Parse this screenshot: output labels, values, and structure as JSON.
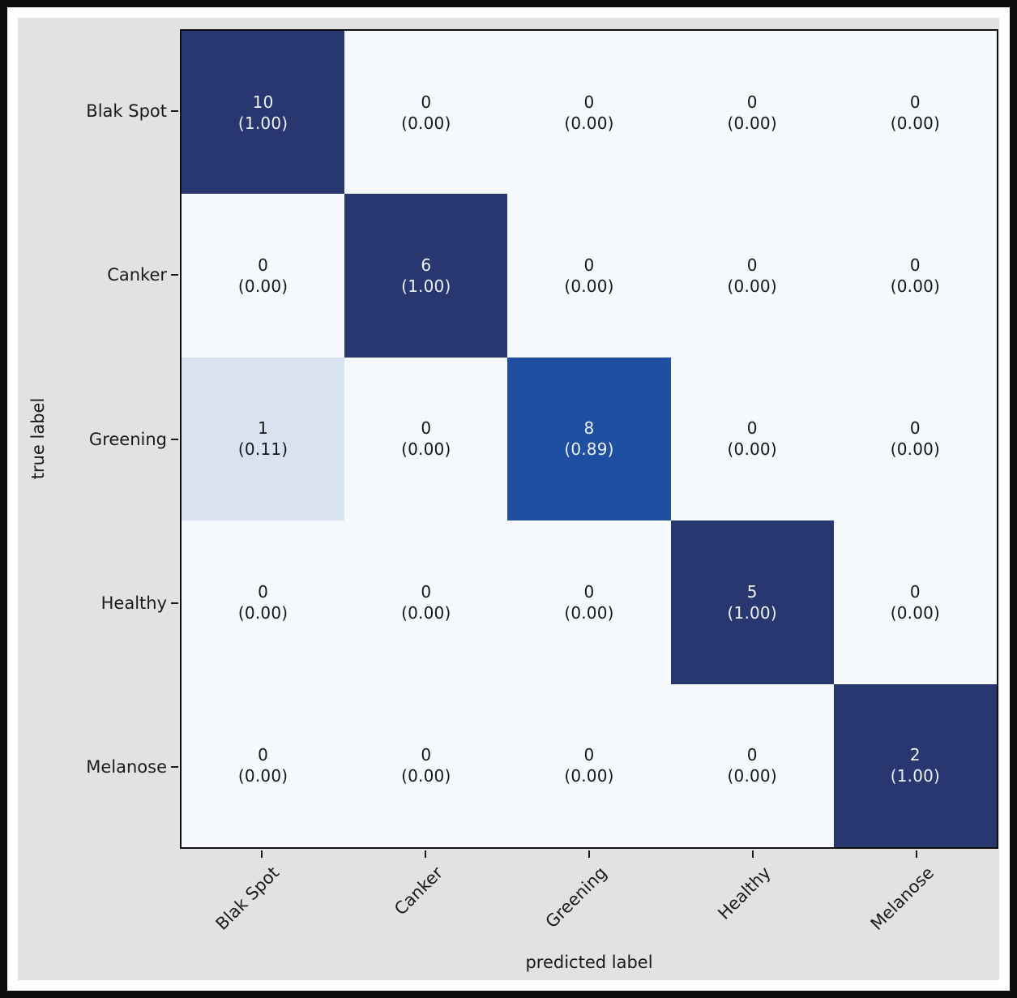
{
  "figure": {
    "frame_color": "#0c0c0c",
    "matte_color": "#ffffff",
    "background": "#e3e2e0",
    "plot_background": "#f5f9fd",
    "axis_border_color": "#101010",
    "tick_color": "#1a1a1a",
    "label_color": "#1a1a1a"
  },
  "chart_data": {
    "type": "heatmap",
    "title": "",
    "xlabel": "predicted label",
    "ylabel": "true label",
    "categories": [
      "Blak Spot",
      "Canker",
      "Greening",
      "Healthy",
      "Melanose"
    ],
    "counts": [
      [
        10,
        0,
        0,
        0,
        0
      ],
      [
        0,
        6,
        0,
        0,
        0
      ],
      [
        1,
        0,
        8,
        0,
        0
      ],
      [
        0,
        0,
        0,
        5,
        0
      ],
      [
        0,
        0,
        0,
        0,
        2
      ]
    ],
    "fractions": [
      [
        "1.00",
        "0.00",
        "0.00",
        "0.00",
        "0.00"
      ],
      [
        "0.00",
        "1.00",
        "0.00",
        "0.00",
        "0.00"
      ],
      [
        "0.11",
        "0.00",
        "0.89",
        "0.00",
        "0.00"
      ],
      [
        "0.00",
        "0.00",
        "0.00",
        "1.00",
        "0.00"
      ],
      [
        "0.00",
        "0.00",
        "0.00",
        "0.00",
        "1.00"
      ]
    ],
    "value_range": [
      0,
      1
    ],
    "grid": false,
    "legend": "none",
    "colormap_anchors": [
      [
        0.0,
        "#f5f9fd"
      ],
      [
        0.11,
        "#d9e2f1"
      ],
      [
        0.89,
        "#1e4fa1"
      ],
      [
        1.0,
        "#283770"
      ]
    ],
    "text_on_dark": "#edf1f9",
    "text_on_light": "#161616"
  }
}
